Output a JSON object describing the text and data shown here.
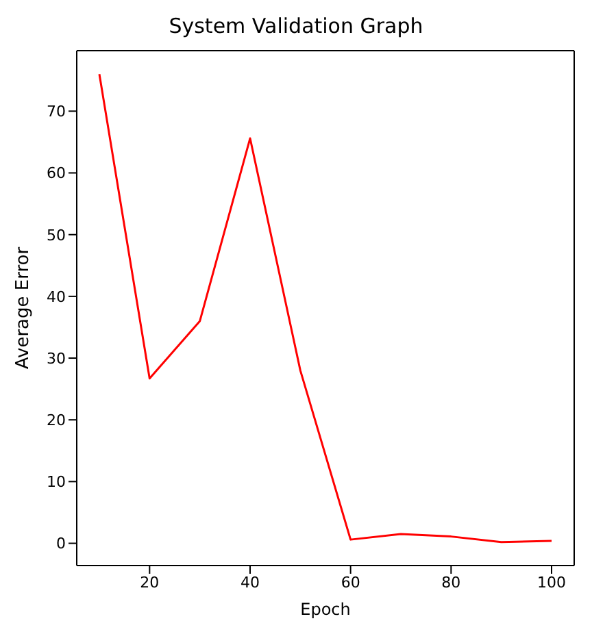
{
  "chart_data": {
    "type": "line",
    "title": "System Validation Graph",
    "xlabel": "Epoch",
    "ylabel": "Average Error",
    "x": [
      10,
      20,
      30,
      40,
      50,
      60,
      70,
      80,
      90,
      100
    ],
    "series": [
      {
        "color": "#ff0000",
        "values": [
          76,
          26.7,
          36,
          65.6,
          28,
          0.6,
          1.5,
          1.1,
          0.2,
          0.4
        ]
      }
    ],
    "xlim": [
      5.5,
      104.5
    ],
    "xticks": [
      20,
      40,
      60,
      80,
      100
    ],
    "ylim": [
      -3.6,
      79.8
    ],
    "yticks": [
      0,
      10,
      20,
      30,
      40,
      50,
      60,
      70
    ]
  }
}
